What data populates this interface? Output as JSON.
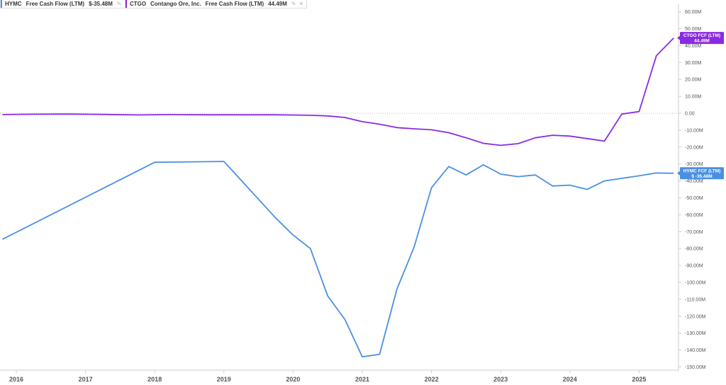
{
  "legend": [
    {
      "ticker": "HYMC",
      "company": "",
      "metric": "Free Cash Flow (LTM)",
      "value": "$-35.48M",
      "color": "#4a90e2",
      "icons": [
        "pencil-icon",
        "close-icon"
      ]
    },
    {
      "ticker": "CTGO",
      "company": "Contango Ore, Inc.",
      "metric": "Free Cash Flow (LTM)",
      "value": "44.49M",
      "color": "#8a2be2",
      "icons": [
        "pencil-icon",
        "close-icon"
      ]
    }
  ],
  "chart_data": {
    "type": "line",
    "title": "",
    "xlabel": "",
    "ylabel": "",
    "ylim": [
      -150,
      60
    ],
    "xlim": [
      2015.8,
      2026.25
    ],
    "yticks": [
      60,
      50,
      40,
      30,
      20,
      10,
      0,
      -10,
      -20,
      -30,
      -40,
      -50,
      -60,
      -70,
      -80,
      -90,
      -100,
      -110,
      -120,
      -130,
      -140,
      -150
    ],
    "ytick_labels": [
      "60.00M",
      "50.00M",
      "40.00M",
      "30.00M",
      "20.00M",
      "10.00M",
      "0.00",
      "-10.00M",
      "-20.00M",
      "-30.00M",
      "-40.00M",
      "-50.00M",
      "-60.00M",
      "-70.00M",
      "-80.00M",
      "-90.00M",
      "-100.00M",
      "-110.00M",
      "-120.00M",
      "-130.00M",
      "-140.00M",
      "-150.00M"
    ],
    "xticks": [
      2016,
      2017,
      2018,
      2019,
      2020,
      2021,
      2022,
      2023,
      2024,
      2025
    ],
    "xtick_labels": [
      "2016",
      "2017",
      "2018",
      "2019",
      "2020",
      "2021",
      "2022",
      "2023",
      "2024",
      "2025"
    ],
    "zero_line": true,
    "grid": false,
    "series": [
      {
        "name": "HYMC",
        "color": "#4a90e2",
        "tag": [
          "HYMC FCF (LTM)",
          "$ -35.48M"
        ],
        "x": [
          2015.8,
          2018.0,
          2019.0,
          2019.75,
          2020.0,
          2020.25,
          2020.5,
          2020.75,
          2021.0,
          2021.25,
          2021.5,
          2021.75,
          2022.0,
          2022.25,
          2022.5,
          2022.75,
          2023.0,
          2023.25,
          2023.5,
          2023.75,
          2024.0,
          2024.25,
          2024.5,
          2024.75,
          2025.0,
          2025.25,
          2025.5
        ],
        "y": [
          -74.5,
          -29.0,
          -28.5,
          -62.0,
          -72.0,
          -80.0,
          -108.0,
          -122.0,
          -144.0,
          -142.5,
          -104.0,
          -79.0,
          -44.0,
          -31.5,
          -36.5,
          -30.5,
          -36.0,
          -37.5,
          -36.5,
          -43.0,
          -42.5,
          -45.0,
          -40.0,
          -38.5,
          -37.0,
          -35.3,
          -35.48
        ]
      },
      {
        "name": "CTGO",
        "color": "#8a2be2",
        "tag": [
          "CTGO FCF (LTM)",
          "44.49M"
        ],
        "x": [
          2015.8,
          2016.25,
          2016.75,
          2017.25,
          2017.75,
          2018.25,
          2018.75,
          2019.25,
          2019.75,
          2020.25,
          2020.5,
          2020.75,
          2021.0,
          2021.25,
          2021.5,
          2021.75,
          2022.0,
          2022.25,
          2022.5,
          2022.75,
          2023.0,
          2023.25,
          2023.5,
          2023.75,
          2024.0,
          2024.25,
          2024.5,
          2024.75,
          2025.0,
          2025.25,
          2025.5
        ],
        "y": [
          -0.8,
          -0.6,
          -0.5,
          -0.7,
          -1.0,
          -0.8,
          -0.9,
          -0.9,
          -0.9,
          -1.2,
          -1.6,
          -2.5,
          -5.0,
          -6.5,
          -8.5,
          -9.2,
          -9.8,
          -11.5,
          -14.5,
          -17.8,
          -19.0,
          -18.0,
          -14.5,
          -13.0,
          -13.5,
          -15.0,
          -16.5,
          -0.5,
          1.0,
          34.0,
          44.49
        ]
      }
    ]
  }
}
